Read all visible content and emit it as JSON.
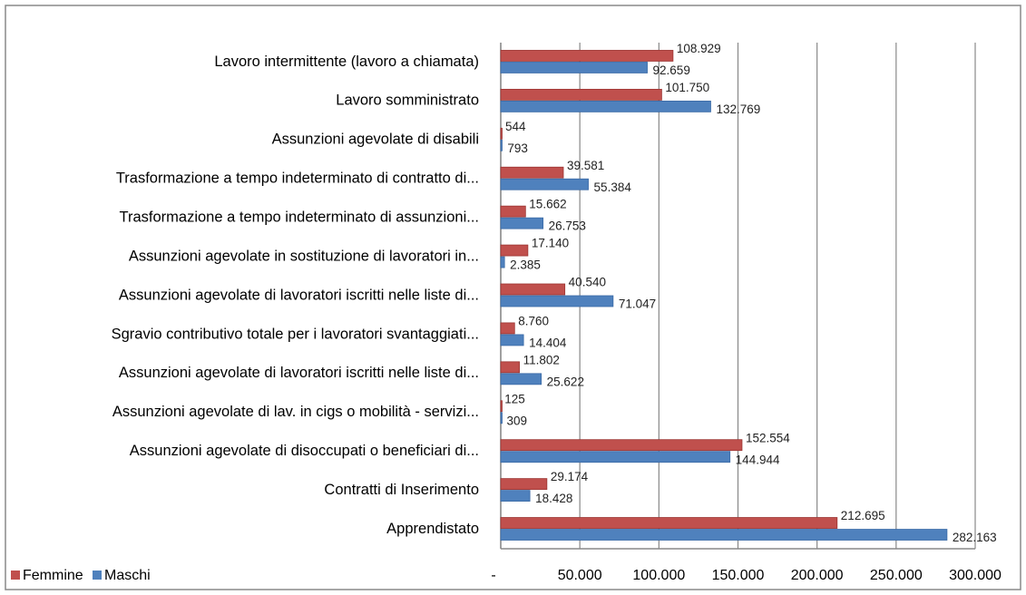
{
  "chart_data": {
    "type": "bar",
    "orientation": "horizontal",
    "categories": [
      "Lavoro intermittente (lavoro a chiamata)",
      "Lavoro somministrato",
      "Assunzioni agevolate di disabili",
      "Trasformazione a tempo indeterminato di contratto di...",
      "Trasformazione a tempo indeterminato di assunzioni...",
      "Assunzioni agevolate in sostituzione di lavoratori in...",
      "Assunzioni agevolate di lavoratori iscritti nelle liste di...",
      "Sgravio contributivo totale per i lavoratori svantaggiati...",
      "Assunzioni agevolate di lavoratori iscritti nelle liste di...",
      "Assunzioni agevolate di lav. in cigs o mobilità - servizi...",
      "Assunzioni agevolate di disoccupati o beneficiari di...",
      "Contratti di Inserimento",
      "Apprendistato"
    ],
    "series": [
      {
        "name": "Femmine",
        "color": "#c0504d",
        "values": [
          108929,
          101750,
          544,
          39581,
          15662,
          17140,
          40540,
          8760,
          11802,
          125,
          152554,
          29174,
          212695
        ],
        "value_labels": [
          "108.929",
          "101.750",
          "544",
          "39.581",
          "15.662",
          "17.140",
          "40.540",
          "8.760",
          "11.802",
          "125",
          "152.554",
          "29.174",
          "212.695"
        ]
      },
      {
        "name": "Maschi",
        "color": "#4f81bd",
        "values": [
          92659,
          132769,
          793,
          55384,
          26753,
          2385,
          71047,
          14404,
          25622,
          309,
          144944,
          18428,
          282163
        ],
        "value_labels": [
          "92.659",
          "132.769",
          "793",
          "55.384",
          "26.753",
          "2.385",
          "71.047",
          "14.404",
          "25.622",
          "309",
          "144.944",
          "18.428",
          "282.163"
        ]
      }
    ],
    "xlim": [
      0,
      300000
    ],
    "xticks": [
      {
        "value": 0,
        "label": "-"
      },
      {
        "value": 50000,
        "label": "50.000"
      },
      {
        "value": 100000,
        "label": "100.000"
      },
      {
        "value": 150000,
        "label": "150.000"
      },
      {
        "value": 200000,
        "label": "200.000"
      },
      {
        "value": 250000,
        "label": "250.000"
      },
      {
        "value": 300000,
        "label": "300.000"
      }
    ],
    "grid": true,
    "legend": "bottom-left"
  }
}
